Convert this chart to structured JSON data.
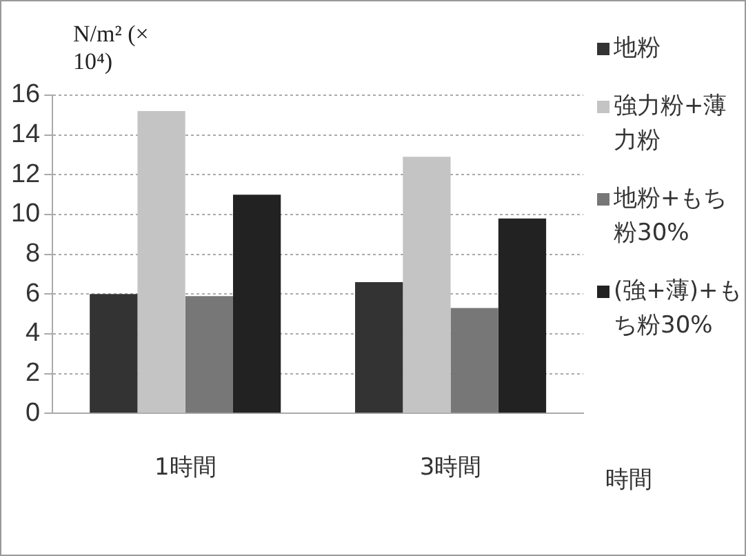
{
  "chart_data": {
    "type": "bar",
    "ylabel": "N/m² (× 10⁴)",
    "xlabel": "時間",
    "categories": [
      "1時間",
      "3時間"
    ],
    "series": [
      {
        "name": "地粉",
        "color": "#333333",
        "values": [
          6.0,
          6.6
        ]
      },
      {
        "name": "強力粉+薄力粉",
        "color": "#c4c4c4",
        "values": [
          15.2,
          12.9
        ]
      },
      {
        "name": "地粉+もち粉30%",
        "color": "#777777",
        "values": [
          5.9,
          5.3
        ]
      },
      {
        "name": "(強+薄)+もち粉30%",
        "color": "#222222",
        "values": [
          11.0,
          9.8
        ]
      }
    ],
    "ylim": [
      0,
      16
    ],
    "yticks": [
      0,
      2,
      4,
      6,
      8,
      10,
      12,
      14,
      16
    ],
    "grid": "y",
    "legend": "right"
  }
}
